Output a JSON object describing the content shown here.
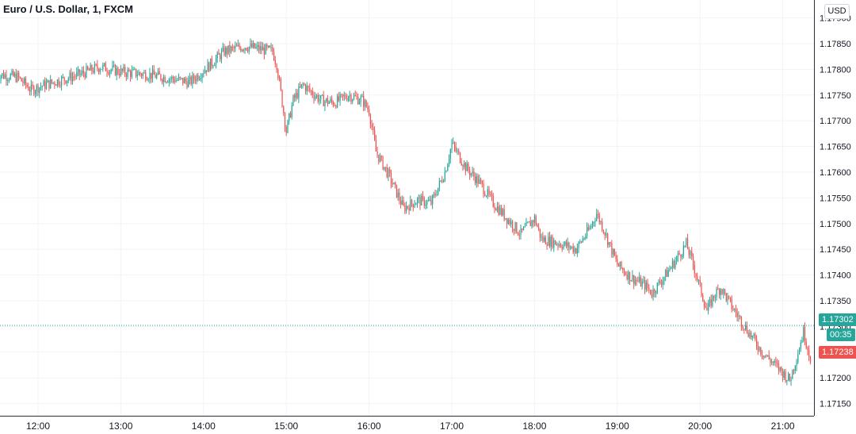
{
  "header": {
    "title": "Euro / U.S. Dollar, 1, FXCM",
    "currency": "USD"
  },
  "price_tags": {
    "bid": "1.17302",
    "countdown": "00:35",
    "last": "1.17238"
  },
  "colors": {
    "up": "#26a69a",
    "down": "#ef5350",
    "grid": "#f0f3fa",
    "axis": "#131722"
  },
  "chart_data": {
    "type": "candlestick",
    "title": "Euro / U.S. Dollar, 1, FXCM",
    "xlabel": "",
    "ylabel": "",
    "x_ticks": [
      "12:00",
      "13:00",
      "14:00",
      "15:00",
      "16:00",
      "17:00",
      "18:00",
      "19:00",
      "20:00",
      "21:00"
    ],
    "y_ticks": [
      "1.17150",
      "1.17200",
      "1.17250",
      "1.17300",
      "1.17350",
      "1.17400",
      "1.17450",
      "1.17500",
      "1.17550",
      "1.17600",
      "1.17650",
      "1.17700",
      "1.17750",
      "1.17800",
      "1.17850",
      "1.17900"
    ],
    "ylim": [
      1.17125,
      1.17935
    ],
    "x_range": [
      "11:30",
      "21:20"
    ],
    "grid": true,
    "price_line": 1.17302,
    "anchors": [
      [
        "11:30",
        1.1779
      ],
      [
        "11:45",
        1.17785
      ],
      [
        "11:55",
        1.1776
      ],
      [
        "12:05",
        1.1777
      ],
      [
        "12:30",
        1.1779
      ],
      [
        "12:45",
        1.17805
      ],
      [
        "13:00",
        1.17795
      ],
      [
        "13:20",
        1.1779
      ],
      [
        "13:40",
        1.1778
      ],
      [
        "13:50",
        1.17775
      ],
      [
        "14:05",
        1.1781
      ],
      [
        "14:15",
        1.17835
      ],
      [
        "14:30",
        1.17845
      ],
      [
        "14:50",
        1.17835
      ],
      [
        "14:53",
        1.1781
      ],
      [
        "15:00",
        1.1768
      ],
      [
        "15:05",
        1.1774
      ],
      [
        "15:12",
        1.1777
      ],
      [
        "15:25",
        1.1774
      ],
      [
        "15:35",
        1.17735
      ],
      [
        "15:45",
        1.1775
      ],
      [
        "15:55",
        1.1774
      ],
      [
        "16:00",
        1.1772
      ],
      [
        "16:05",
        1.1764
      ],
      [
        "16:15",
        1.1759
      ],
      [
        "16:25",
        1.1753
      ],
      [
        "16:35",
        1.17545
      ],
      [
        "16:45",
        1.1754
      ],
      [
        "16:55",
        1.176
      ],
      [
        "17:00",
        1.17655
      ],
      [
        "17:10",
        1.1761
      ],
      [
        "17:20",
        1.1758
      ],
      [
        "17:30",
        1.1754
      ],
      [
        "17:40",
        1.1751
      ],
      [
        "17:50",
        1.1748
      ],
      [
        "18:00",
        1.1751
      ],
      [
        "18:05",
        1.1747
      ],
      [
        "18:20",
        1.1746
      ],
      [
        "18:30",
        1.1745
      ],
      [
        "18:40",
        1.1749
      ],
      [
        "18:45",
        1.1752
      ],
      [
        "18:50",
        1.1749
      ],
      [
        "19:00",
        1.1742
      ],
      [
        "19:10",
        1.17395
      ],
      [
        "19:20",
        1.1738
      ],
      [
        "19:25",
        1.17365
      ],
      [
        "19:35",
        1.174
      ],
      [
        "19:45",
        1.1744
      ],
      [
        "19:50",
        1.1746
      ],
      [
        "19:55",
        1.1742
      ],
      [
        "20:05",
        1.1733
      ],
      [
        "20:10",
        1.1736
      ],
      [
        "20:15",
        1.17375
      ],
      [
        "20:25",
        1.1733
      ],
      [
        "20:35",
        1.1729
      ],
      [
        "20:45",
        1.1725
      ],
      [
        "21:00",
        1.1721
      ],
      [
        "21:05",
        1.17195
      ],
      [
        "21:10",
        1.1724
      ],
      [
        "21:15",
        1.1729
      ],
      [
        "21:20",
        1.17238
      ]
    ]
  }
}
